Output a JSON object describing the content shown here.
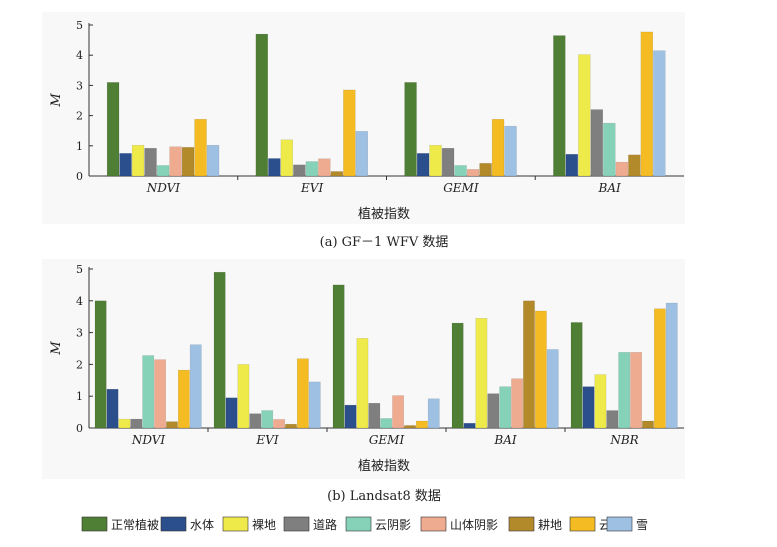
{
  "legend": [
    {
      "name": "正常植被",
      "color": "#4f7f35"
    },
    {
      "name": "水体",
      "color": "#2b4f8c"
    },
    {
      "name": "裸地",
      "color": "#eeea4a"
    },
    {
      "name": "道路",
      "color": "#7f7f7f"
    },
    {
      "name": "云阴影",
      "color": "#86d2b8"
    },
    {
      "name": "山体阴影",
      "color": "#efab8f"
    },
    {
      "name": "耕地",
      "color": "#b38a2a"
    },
    {
      "name": "云",
      "color": "#f4bb22"
    },
    {
      "name": "雪",
      "color": "#9dc0e3"
    }
  ],
  "chart_data": [
    {
      "type": "bar",
      "caption": "(a) GF－1 WFV 数据",
      "xlabel": "植被指数",
      "ylabel": "M",
      "ylim": [
        0,
        5
      ],
      "yticks": [
        "0",
        "1",
        "2",
        "3",
        "4",
        "5"
      ],
      "categories": [
        "NDVI",
        "EVI",
        "GEMI",
        "BAI"
      ],
      "series": [
        {
          "name": "正常植被",
          "values": [
            3.1,
            4.7,
            3.1,
            4.65
          ]
        },
        {
          "name": "水体",
          "values": [
            0.75,
            0.58,
            0.75,
            0.72
          ]
        },
        {
          "name": "裸地",
          "values": [
            1.02,
            1.2,
            1.02,
            4.02
          ]
        },
        {
          "name": "道路",
          "values": [
            0.92,
            0.37,
            0.92,
            2.2
          ]
        },
        {
          "name": "云阴影",
          "values": [
            0.35,
            0.48,
            0.35,
            1.75
          ]
        },
        {
          "name": "山体阴影",
          "values": [
            0.97,
            0.57,
            0.22,
            0.46
          ]
        },
        {
          "name": "耕地",
          "values": [
            0.95,
            0.15,
            0.42,
            0.7
          ]
        },
        {
          "name": "云",
          "values": [
            1.88,
            2.85,
            1.88,
            4.77
          ]
        },
        {
          "name": "雪",
          "values": [
            1.02,
            1.48,
            1.65,
            4.15
          ]
        }
      ]
    },
    {
      "type": "bar",
      "caption": "(b) Landsat8 数据",
      "xlabel": "植被指数",
      "ylabel": "M",
      "ylim": [
        0,
        5
      ],
      "yticks": [
        "0",
        "1",
        "2",
        "3",
        "4",
        "5"
      ],
      "categories": [
        "NDVI",
        "EVI",
        "GEMI",
        "BAI",
        "NBR"
      ],
      "series": [
        {
          "name": "正常植被",
          "values": [
            4.0,
            4.9,
            4.5,
            3.3,
            3.32
          ]
        },
        {
          "name": "水体",
          "values": [
            1.22,
            0.95,
            0.72,
            0.15,
            1.3
          ]
        },
        {
          "name": "裸地",
          "values": [
            0.28,
            2.0,
            2.82,
            3.45,
            1.68
          ]
        },
        {
          "name": "道路",
          "values": [
            0.28,
            0.45,
            0.78,
            1.08,
            0.55
          ]
        },
        {
          "name": "云阴影",
          "values": [
            2.28,
            0.55,
            0.3,
            1.3,
            2.38
          ]
        },
        {
          "name": "山体阴影",
          "values": [
            2.15,
            0.27,
            1.02,
            1.55,
            2.38
          ]
        },
        {
          "name": "耕地",
          "values": [
            0.2,
            0.12,
            0.08,
            4.0,
            0.22
          ]
        },
        {
          "name": "云",
          "values": [
            1.82,
            2.18,
            0.22,
            3.68,
            3.75
          ]
        },
        {
          "name": "雪",
          "values": [
            2.62,
            1.45,
            0.92,
            2.47,
            3.93
          ]
        }
      ]
    }
  ]
}
